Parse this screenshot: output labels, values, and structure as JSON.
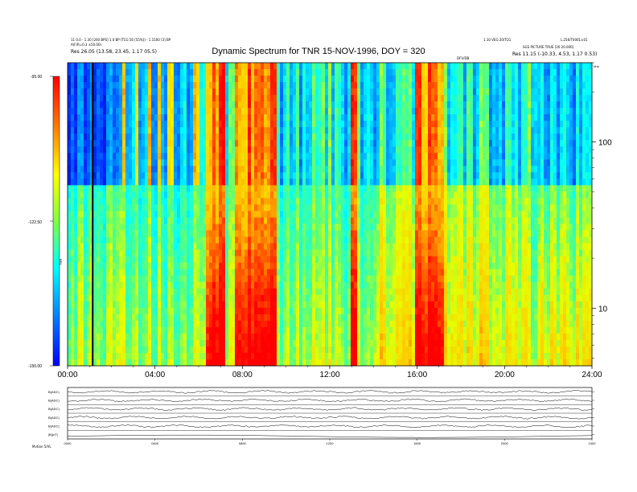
{
  "header": {
    "title": "Dynamic Spectrum for TNR 15-NOV-1996, DOY = 320",
    "left_line1": "11 0.0 - 1.30 [200 BPS] 1.0 BP (TCG 56 [55%]) - 1.1500 [3] BP",
    "left_line2": "A(F/R=0.3 ±50.00)",
    "left_line3": "Res   26.05 (13.58, 23.45, 1.17 05.5)",
    "right_line1": "1.10 VEG 20/TCG",
    "right_line2": "L.256/T0001±01",
    "right_line3": "SGS PICTURE TRUE [20 20.006]",
    "right_line4": "Res   11.15 (-10.33, 4.53, 1.17 0.53)",
    "center_tag": "DFV/DB",
    "unit_label": "kHz"
  },
  "colorbar": {
    "ticks": [
      "-95.00",
      "-122.50",
      "-150.00"
    ],
    "label": "THR",
    "colors": [
      "#ff0000",
      "#ffff00",
      "#00ffff",
      "#0000ff"
    ]
  },
  "chart_data": {
    "type": "heatmap",
    "title": "Dynamic Spectrum for TNR 15-NOV-1996, DOY = 320",
    "x_ticks": [
      "00:00",
      "04:00",
      "08:00",
      "12:00",
      "16:00",
      "20:00",
      "24:00"
    ],
    "xlim": [
      0,
      24
    ],
    "y_scale": "log",
    "y_ticks": [
      "100",
      "10"
    ],
    "ylabel": "kHz",
    "zlim": [
      -150,
      -95
    ],
    "colorbar_ticks": [
      -95.0,
      -122.5,
      -150.0
    ],
    "bright_events_hours": [
      [
        6.3,
        7.2
      ],
      [
        7.7,
        9.5
      ],
      [
        12.9,
        13.3
      ],
      [
        15.9,
        17.3
      ]
    ],
    "band_boundary_khz": 60
  },
  "bottom_panels": {
    "labels": [
      "B(ADC)",
      "B(ADC)",
      "B(ADC)",
      "B(ADC)",
      "B(ADC)",
      "|B|(nT)"
    ],
    "x_ticks": [
      "0000",
      "0400",
      "0800",
      "1200",
      "1600",
      "2000",
      "2400"
    ],
    "footer_label": "Mvtion  5/VL"
  }
}
